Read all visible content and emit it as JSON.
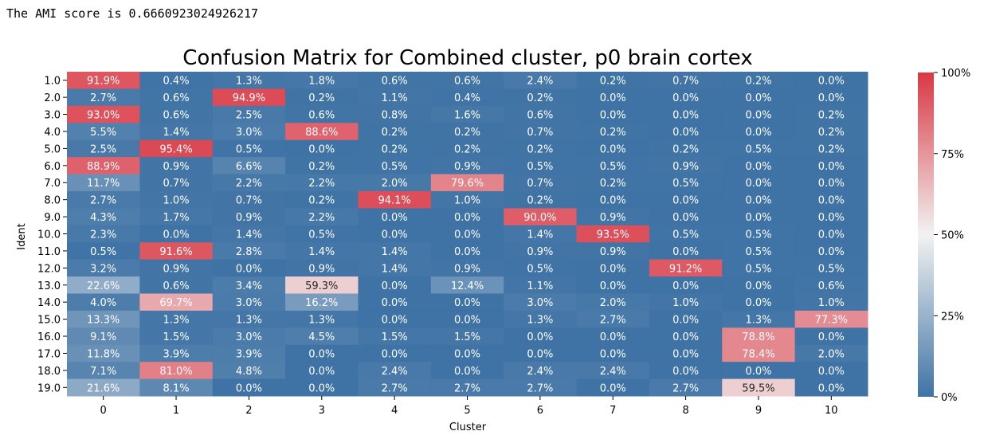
{
  "output_text": "The AMI score is 0.6660923024926217",
  "colors": {
    "low": "#3f73a5",
    "mid": "#f2f2f2",
    "high": "#d93844"
  },
  "chart_data": {
    "type": "heatmap",
    "title": "Confusion Matrix for Combined cluster, p0 brain cortex",
    "xlabel": "Cluster",
    "ylabel": "Ident",
    "x_categories": [
      "0",
      "1",
      "2",
      "3",
      "4",
      "5",
      "6",
      "7",
      "8",
      "9",
      "10"
    ],
    "y_categories": [
      "1.0",
      "2.0",
      "3.0",
      "4.0",
      "5.0",
      "6.0",
      "7.0",
      "8.0",
      "9.0",
      "10.0",
      "11.0",
      "12.0",
      "13.0",
      "14.0",
      "15.0",
      "16.0",
      "17.0",
      "18.0",
      "19.0"
    ],
    "values": [
      [
        91.9,
        0.4,
        1.3,
        1.8,
        0.6,
        0.6,
        2.4,
        0.2,
        0.7,
        0.2,
        0.0
      ],
      [
        2.7,
        0.6,
        94.9,
        0.2,
        1.1,
        0.4,
        0.2,
        0.0,
        0.0,
        0.0,
        0.0
      ],
      [
        93.0,
        0.6,
        2.5,
        0.6,
        0.8,
        1.6,
        0.6,
        0.0,
        0.0,
        0.0,
        0.2
      ],
      [
        5.5,
        1.4,
        3.0,
        88.6,
        0.2,
        0.2,
        0.7,
        0.2,
        0.0,
        0.0,
        0.2
      ],
      [
        2.5,
        95.4,
        0.5,
        0.0,
        0.2,
        0.2,
        0.2,
        0.0,
        0.2,
        0.5,
        0.2
      ],
      [
        88.9,
        0.9,
        6.6,
        0.2,
        0.5,
        0.9,
        0.5,
        0.5,
        0.9,
        0.0,
        0.0
      ],
      [
        11.7,
        0.7,
        2.2,
        2.2,
        2.0,
        79.6,
        0.7,
        0.2,
        0.5,
        0.0,
        0.0
      ],
      [
        2.7,
        1.0,
        0.7,
        0.2,
        94.1,
        1.0,
        0.2,
        0.0,
        0.0,
        0.0,
        0.0
      ],
      [
        4.3,
        1.7,
        0.9,
        2.2,
        0.0,
        0.0,
        90.0,
        0.9,
        0.0,
        0.0,
        0.0
      ],
      [
        2.3,
        0.0,
        1.4,
        0.5,
        0.0,
        0.0,
        1.4,
        93.5,
        0.5,
        0.5,
        0.0
      ],
      [
        0.5,
        91.6,
        2.8,
        1.4,
        1.4,
        0.0,
        0.9,
        0.9,
        0.0,
        0.5,
        0.0
      ],
      [
        3.2,
        0.9,
        0.0,
        0.9,
        1.4,
        0.9,
        0.5,
        0.0,
        91.2,
        0.5,
        0.5
      ],
      [
        22.6,
        0.6,
        3.4,
        59.3,
        0.0,
        12.4,
        1.1,
        0.0,
        0.0,
        0.0,
        0.6
      ],
      [
        4.0,
        69.7,
        3.0,
        16.2,
        0.0,
        0.0,
        3.0,
        2.0,
        1.0,
        0.0,
        1.0
      ],
      [
        13.3,
        1.3,
        1.3,
        1.3,
        0.0,
        0.0,
        1.3,
        2.7,
        0.0,
        1.3,
        77.3
      ],
      [
        9.1,
        1.5,
        3.0,
        4.5,
        1.5,
        1.5,
        0.0,
        0.0,
        0.0,
        78.8,
        0.0
      ],
      [
        11.8,
        3.9,
        3.9,
        0.0,
        0.0,
        0.0,
        0.0,
        0.0,
        0.0,
        78.4,
        2.0
      ],
      [
        7.1,
        81.0,
        4.8,
        0.0,
        2.4,
        0.0,
        2.4,
        2.4,
        0.0,
        0.0,
        0.0
      ],
      [
        21.6,
        8.1,
        0.0,
        0.0,
        2.7,
        2.7,
        2.7,
        0.0,
        2.7,
        59.5,
        0.0
      ]
    ],
    "value_format": "%",
    "colorbar": {
      "ticks": [
        0,
        25,
        50,
        75,
        100
      ],
      "tick_labels": [
        "0%",
        "25%",
        "50%",
        "75%",
        "100%"
      ],
      "range": [
        0,
        100
      ]
    }
  }
}
